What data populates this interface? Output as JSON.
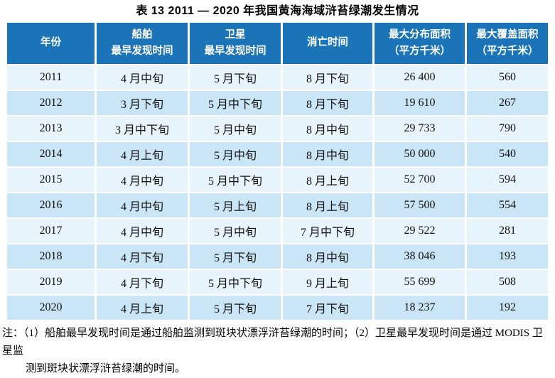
{
  "title": "表 13  2011 — 2020 年我国黄海海域浒苔绿潮发生情况",
  "colors": {
    "header_bg": "#1b74b8",
    "row_light": "#e8f4fc",
    "row_dark": "#c9e5f6",
    "header_text": "#ffffff",
    "body_text": "#111111"
  },
  "table": {
    "headers": [
      "年份",
      "船舶\n最早发现时间",
      "卫星\n最早发现时间",
      "消亡时间",
      "最大分布面积\n（平方千米）",
      "最大覆盖面积\n（平方千米）"
    ],
    "column_keys": [
      "year",
      "ship-first-detect-time",
      "satellite-first-detect-time",
      "extinction-time",
      "max-distribution-area",
      "max-coverage-area"
    ],
    "rows": [
      [
        "2011",
        "4 月中旬",
        "5 月下旬",
        "8 月下旬",
        "26 400",
        "560"
      ],
      [
        "2012",
        "3 月下旬",
        "5 月中下旬",
        "8 月下旬",
        "19 610",
        "267"
      ],
      [
        "2013",
        "3 月中下旬",
        "5 月中旬",
        "8 月中旬",
        "29 733",
        "790"
      ],
      [
        "2014",
        "4 月上旬",
        "5 月中旬",
        "8 月中旬",
        "50 000",
        "540"
      ],
      [
        "2015",
        "4 月中旬",
        "5 月中下旬",
        "8 月上旬",
        "52 700",
        "594"
      ],
      [
        "2016",
        "4 月中旬",
        "5 月上旬",
        "8 月上旬",
        "57 500",
        "554"
      ],
      [
        "2017",
        "4 月中旬",
        "5 月中旬",
        "7 月中下旬",
        "29 522",
        "281"
      ],
      [
        "2018",
        "4 月下旬",
        "5 月下旬",
        "8 月中旬",
        "38 046",
        "193"
      ],
      [
        "2019",
        "4 月下旬",
        "5 月中下旬",
        "9 月上旬",
        "55 699",
        "508"
      ],
      [
        "2020",
        "4 月上旬",
        "5 月下旬",
        "7 月下旬",
        "18 237",
        "192"
      ]
    ]
  },
  "notes": {
    "line1": "注：（1）船舶最早发现时间是通过船舶监测到斑块状漂浮浒苔绿潮的时间；（2）卫星最早发现时间是通过 MODIS 卫星监",
    "line2": "测到斑块状漂浮浒苔绿潮的时间。"
  }
}
